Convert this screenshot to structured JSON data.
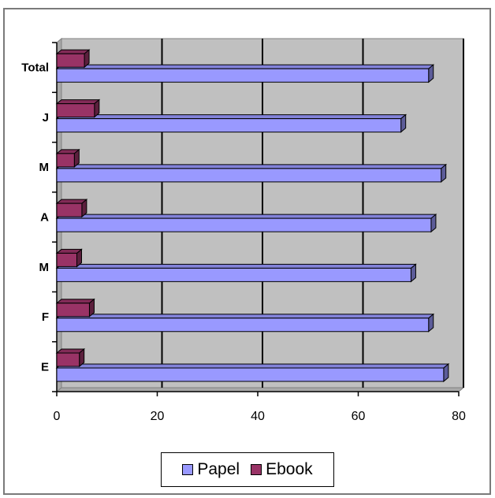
{
  "chart_data": {
    "type": "bar",
    "orientation": "horizontal",
    "three_d": true,
    "categories": [
      "E",
      "F",
      "M",
      "A",
      "M",
      "J",
      "Total"
    ],
    "series": [
      {
        "name": "Papel",
        "color": "#9999ff",
        "values": [
          77,
          74,
          70.5,
          74.5,
          76.5,
          68.5,
          74
        ]
      },
      {
        "name": "Ebook",
        "color": "#993366",
        "values": [
          4.5,
          6.5,
          4,
          5,
          3.5,
          7.5,
          5.5
        ]
      }
    ],
    "xlim": [
      0,
      80
    ],
    "xticks": [
      0,
      20,
      40,
      60,
      80
    ],
    "title": "",
    "xlabel": "",
    "ylabel": "",
    "grid": "vertical",
    "plot_background": "#c0c0c0",
    "legend_position": "bottom"
  }
}
